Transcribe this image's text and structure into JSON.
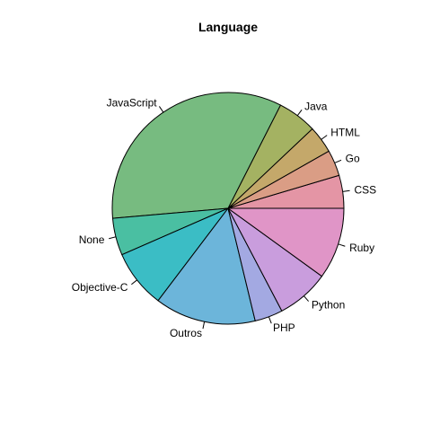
{
  "chart_data": {
    "type": "pie",
    "title": "Language",
    "direction": "counterclockwise",
    "start_angle_deg": 0,
    "slices": [
      {
        "label": "CSS",
        "value": 4.7,
        "color": "#E495A5"
      },
      {
        "label": "Go",
        "value": 3.7,
        "color": "#DA9D85"
      },
      {
        "label": "HTML",
        "value": 3.9,
        "color": "#C4A86A"
      },
      {
        "label": "Java",
        "value": 5.6,
        "color": "#A4B262"
      },
      {
        "label": "JavaScript",
        "value": 34.6,
        "color": "#77BB80"
      },
      {
        "label": "None",
        "value": 5.3,
        "color": "#4ABFA2"
      },
      {
        "label": "Objective-C",
        "value": 8.3,
        "color": "#3BBDC5"
      },
      {
        "label": "Outros",
        "value": 14.4,
        "color": "#6CB5DA"
      },
      {
        "label": "PHP",
        "value": 4.0,
        "color": "#A3A9E2"
      },
      {
        "label": "Python",
        "value": 7.5,
        "color": "#C99DDD"
      },
      {
        "label": "Ruby",
        "value": 10.2,
        "color": "#E095C7"
      }
    ]
  }
}
